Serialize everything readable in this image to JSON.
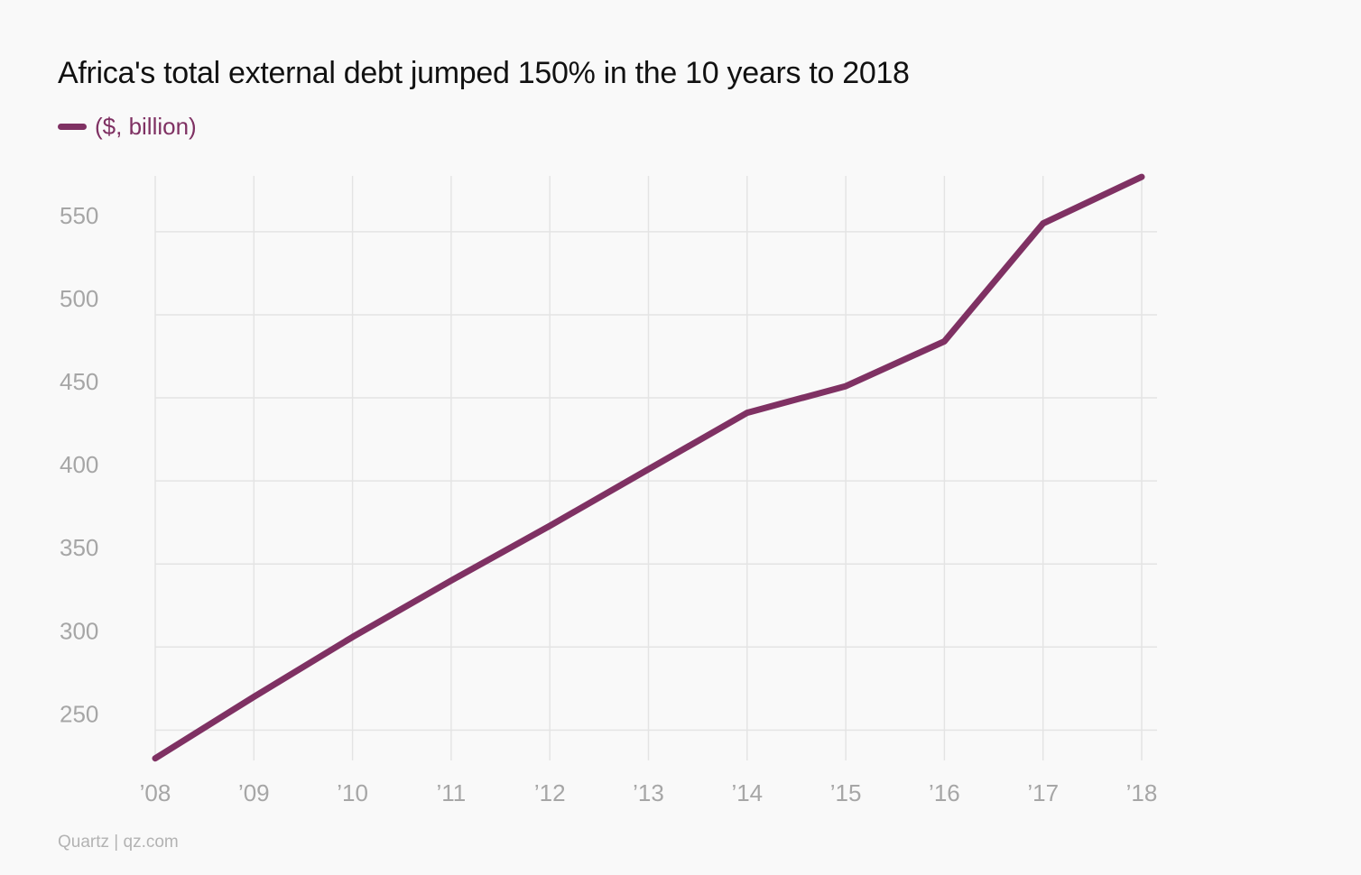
{
  "title": "Africa's total external debt jumped 150% in the 10 years to 2018",
  "source": "Quartz | qz.com",
  "colors": {
    "series": "#7f3163",
    "grid": "#e4e4e4",
    "tick": "#a6a6a6",
    "background": "#f9f9f9"
  },
  "chart_data": {
    "type": "line",
    "title": "Africa's total external debt jumped 150% in the 10 years to 2018",
    "xlabel": "",
    "ylabel": "",
    "x": [
      "’08",
      "’09",
      "’10",
      "’11",
      "’12",
      "’13",
      "’14",
      "’15",
      "’16",
      "’17",
      "’18"
    ],
    "series": [
      {
        "name": "($, billion)",
        "values": [
          233,
          270,
          306,
          340,
          373,
          407,
          441,
          457,
          484,
          555,
          583
        ]
      }
    ],
    "yticks": [
      250,
      300,
      350,
      400,
      450,
      500,
      550
    ],
    "ylim": [
      235,
      595
    ],
    "grid": true,
    "legend": "top-left"
  }
}
